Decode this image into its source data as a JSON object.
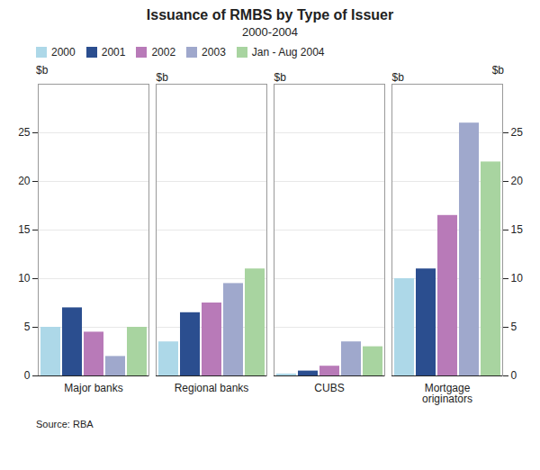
{
  "chart_data": {
    "type": "bar",
    "title": "Issuance of RMBS by Type of Issuer",
    "subtitle": "2000-2004",
    "ylabel": "$b",
    "y2label": "$b",
    "source": "Source: RBA",
    "categories": [
      "Major banks",
      "Regional banks",
      "CUBS",
      "Mortgage\noriginators"
    ],
    "series": [
      {
        "name": "2000",
        "color": "#add8e8",
        "values": [
          5.0,
          3.5,
          0.2,
          10.0
        ]
      },
      {
        "name": "2001",
        "color": "#2b4e8f",
        "values": [
          7.0,
          6.5,
          0.5,
          11.0
        ]
      },
      {
        "name": "2002",
        "color": "#b87ab8",
        "values": [
          4.5,
          7.5,
          1.0,
          16.5
        ]
      },
      {
        "name": "2003",
        "color": "#9fa8cc",
        "values": [
          2.0,
          9.5,
          3.5,
          26.0
        ]
      },
      {
        "name": "Jan - Aug 2004",
        "color": "#a8d4a0",
        "values": [
          5.0,
          11.0,
          3.0,
          22.0
        ]
      }
    ],
    "ylim": [
      0,
      30
    ],
    "yticks": [
      0,
      5,
      10,
      15,
      20,
      25
    ],
    "grid": true,
    "legend": "upper left"
  }
}
